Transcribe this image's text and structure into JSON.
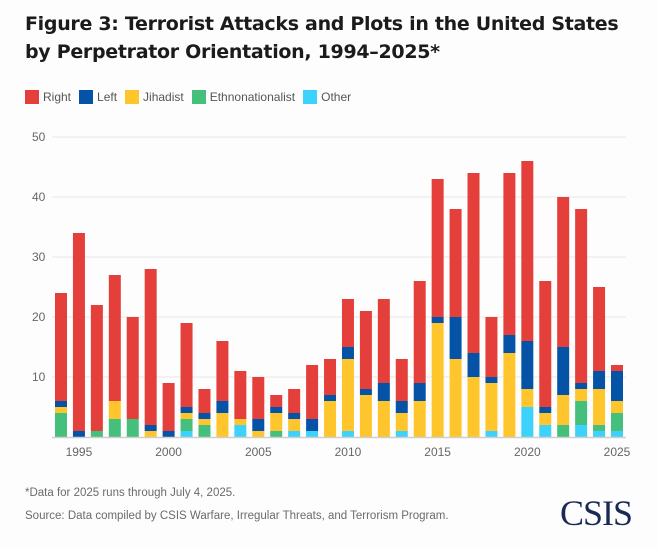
{
  "title": "Figure 3: Terrorist Attacks and Plots in the United States by Perpetrator Orientation, 1994–2025*",
  "footnote": "*Data for 2025 runs through July 4, 2025.",
  "source": "Source: Data compiled by CSIS Warfare, Irregular Threats, and Terrorism Program.",
  "logo": "CSIS",
  "legend": [
    {
      "label": "Right",
      "color": "#e53f3c"
    },
    {
      "label": "Left",
      "color": "#0553a6"
    },
    {
      "label": "Jihadist",
      "color": "#fec62c"
    },
    {
      "label": "Ethnonationalist",
      "color": "#45bf7c"
    },
    {
      "label": "Other",
      "color": "#3dd2fb"
    }
  ],
  "chart_data": {
    "type": "bar",
    "stacked": true,
    "title": "Figure 3: Terrorist Attacks and Plots in the United States by Perpetrator Orientation, 1994–2025*",
    "xlabel": "",
    "ylabel": "",
    "ylim": [
      0,
      50
    ],
    "yticks": [
      10,
      20,
      30,
      40,
      50
    ],
    "xticks": [
      "1995",
      "2000",
      "2005",
      "2010",
      "2015",
      "2020",
      "2025"
    ],
    "grid": true,
    "legend_position": "top-left",
    "categories": [
      1994,
      1995,
      1996,
      1997,
      1998,
      1999,
      2000,
      2001,
      2002,
      2003,
      2004,
      2005,
      2006,
      2007,
      2008,
      2009,
      2010,
      2011,
      2012,
      2013,
      2014,
      2015,
      2016,
      2017,
      2018,
      2019,
      2020,
      2021,
      2022,
      2023,
      2024,
      2025
    ],
    "series": [
      {
        "name": "Other",
        "color": "#3dd2fb",
        "values": [
          0,
          0,
          0,
          0,
          0,
          0,
          0,
          1,
          0,
          0,
          2,
          0,
          0,
          1,
          1,
          0,
          1,
          0,
          0,
          1,
          0,
          0,
          0,
          0,
          1,
          0,
          5,
          2,
          0,
          2,
          1,
          1
        ]
      },
      {
        "name": "Ethnonationalist",
        "color": "#45bf7c",
        "values": [
          4,
          0,
          1,
          3,
          3,
          0,
          0,
          2,
          2,
          0,
          0,
          0,
          1,
          0,
          0,
          0,
          0,
          0,
          0,
          0,
          0,
          0,
          0,
          0,
          0,
          0,
          0,
          0,
          2,
          4,
          1,
          3
        ]
      },
      {
        "name": "Jihadist",
        "color": "#fec62c",
        "values": [
          1,
          0,
          0,
          3,
          0,
          1,
          0,
          1,
          1,
          4,
          1,
          1,
          3,
          2,
          0,
          6,
          12,
          7,
          6,
          3,
          6,
          19,
          13,
          10,
          8,
          14,
          3,
          2,
          5,
          2,
          6,
          2
        ]
      },
      {
        "name": "Left",
        "color": "#0553a6",
        "values": [
          1,
          1,
          0,
          0,
          0,
          1,
          1,
          1,
          1,
          2,
          0,
          2,
          1,
          1,
          2,
          1,
          2,
          1,
          3,
          2,
          3,
          1,
          7,
          4,
          1,
          3,
          8,
          1,
          8,
          1,
          3,
          5
        ]
      },
      {
        "name": "Right",
        "color": "#e53f3c",
        "values": [
          18,
          33,
          21,
          21,
          17,
          26,
          8,
          14,
          4,
          10,
          8,
          7,
          2,
          4,
          9,
          6,
          8,
          13,
          14,
          7,
          17,
          23,
          18,
          30,
          10,
          27,
          30,
          21,
          25,
          29,
          14,
          1
        ]
      }
    ]
  }
}
